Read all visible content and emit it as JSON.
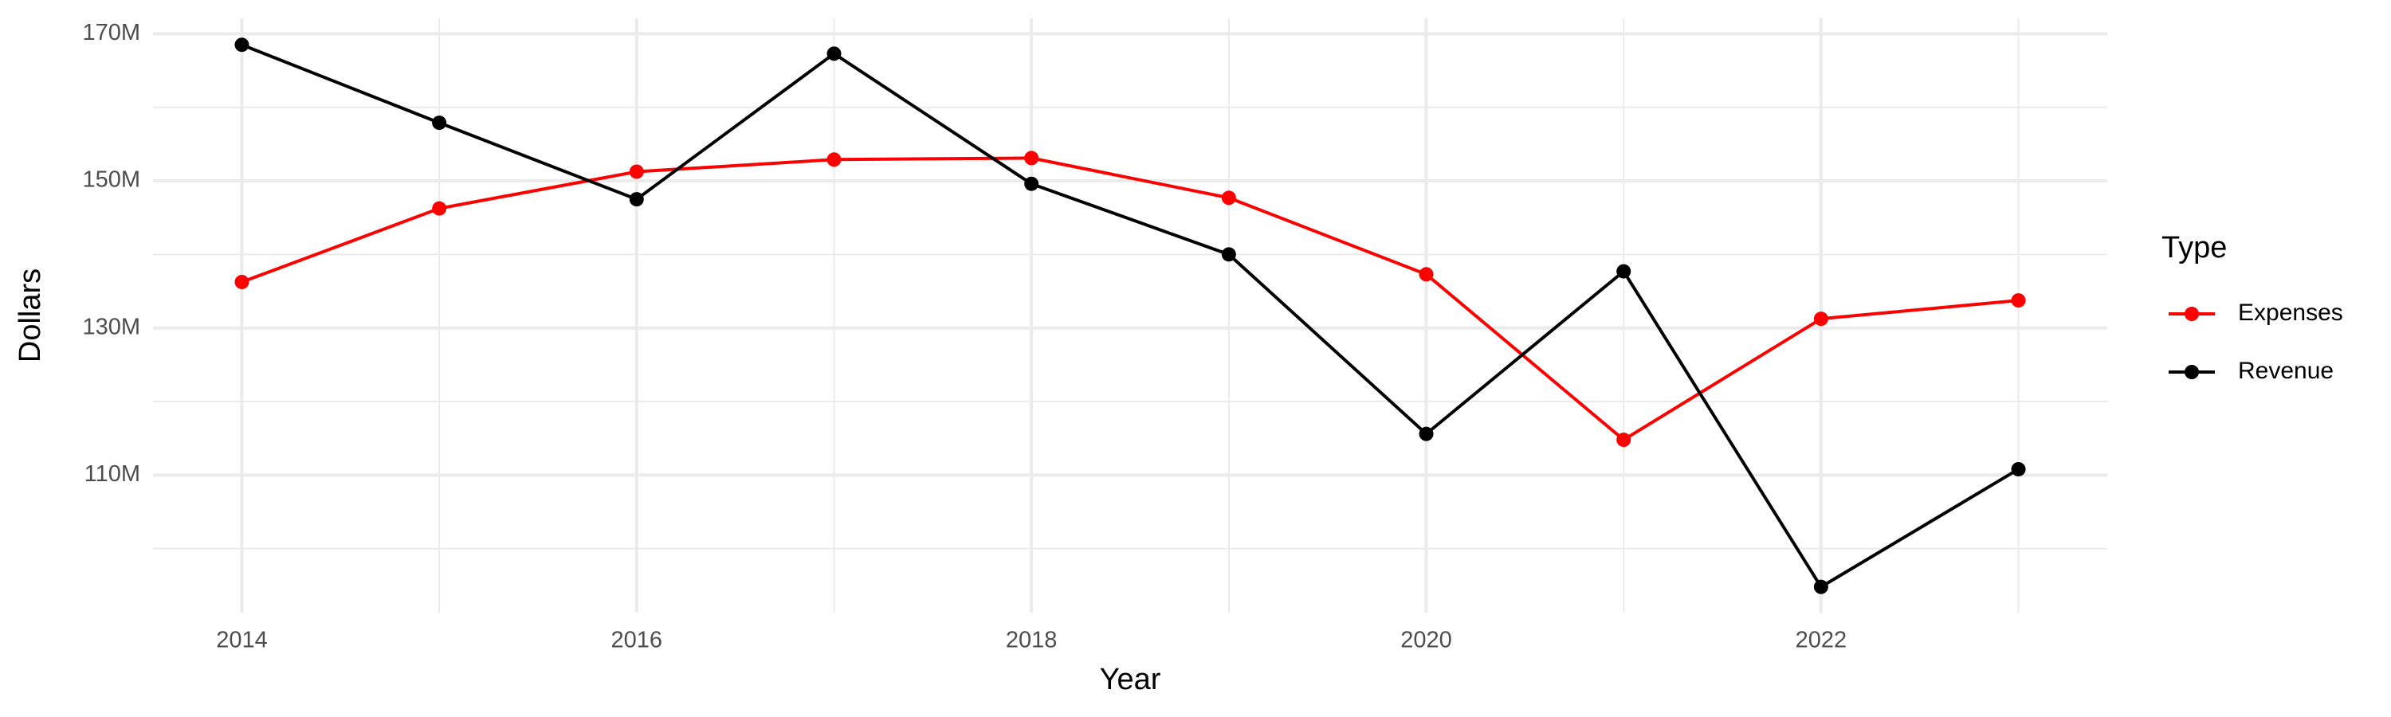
{
  "chart_data": {
    "type": "line",
    "x_label": "Year",
    "y_label": "Dollars",
    "legend_title": "Type",
    "x": [
      2014,
      2015,
      2016,
      2017,
      2018,
      2019,
      2020,
      2021,
      2022,
      2023
    ],
    "series": [
      {
        "name": "Expenses",
        "color": "#ff0000",
        "values": [
          136.25,
          146.25,
          151.25,
          152.9,
          153.1,
          147.7,
          137.3,
          114.8,
          131.25,
          133.75
        ]
      },
      {
        "name": "Revenue",
        "color": "#000000",
        "values": [
          168.5,
          157.9,
          147.5,
          167.3,
          149.6,
          140.0,
          115.6,
          137.7,
          94.8,
          110.8
        ]
      }
    ],
    "xlim": [
      2013.55,
      2023.45
    ],
    "xticks": [
      2014,
      2016,
      2018,
      2020,
      2022
    ],
    "xminor": [
      2015,
      2017,
      2019,
      2021,
      2023
    ],
    "ylim": [
      91.3,
      172.1
    ],
    "yticks": [
      {
        "value": 110,
        "label": "110M"
      },
      {
        "value": 130,
        "label": "130M"
      },
      {
        "value": 150,
        "label": "150M"
      },
      {
        "value": 170,
        "label": "170M"
      }
    ],
    "yminor": [
      100,
      120,
      140,
      160
    ],
    "grid": true,
    "legend_position": "right"
  }
}
